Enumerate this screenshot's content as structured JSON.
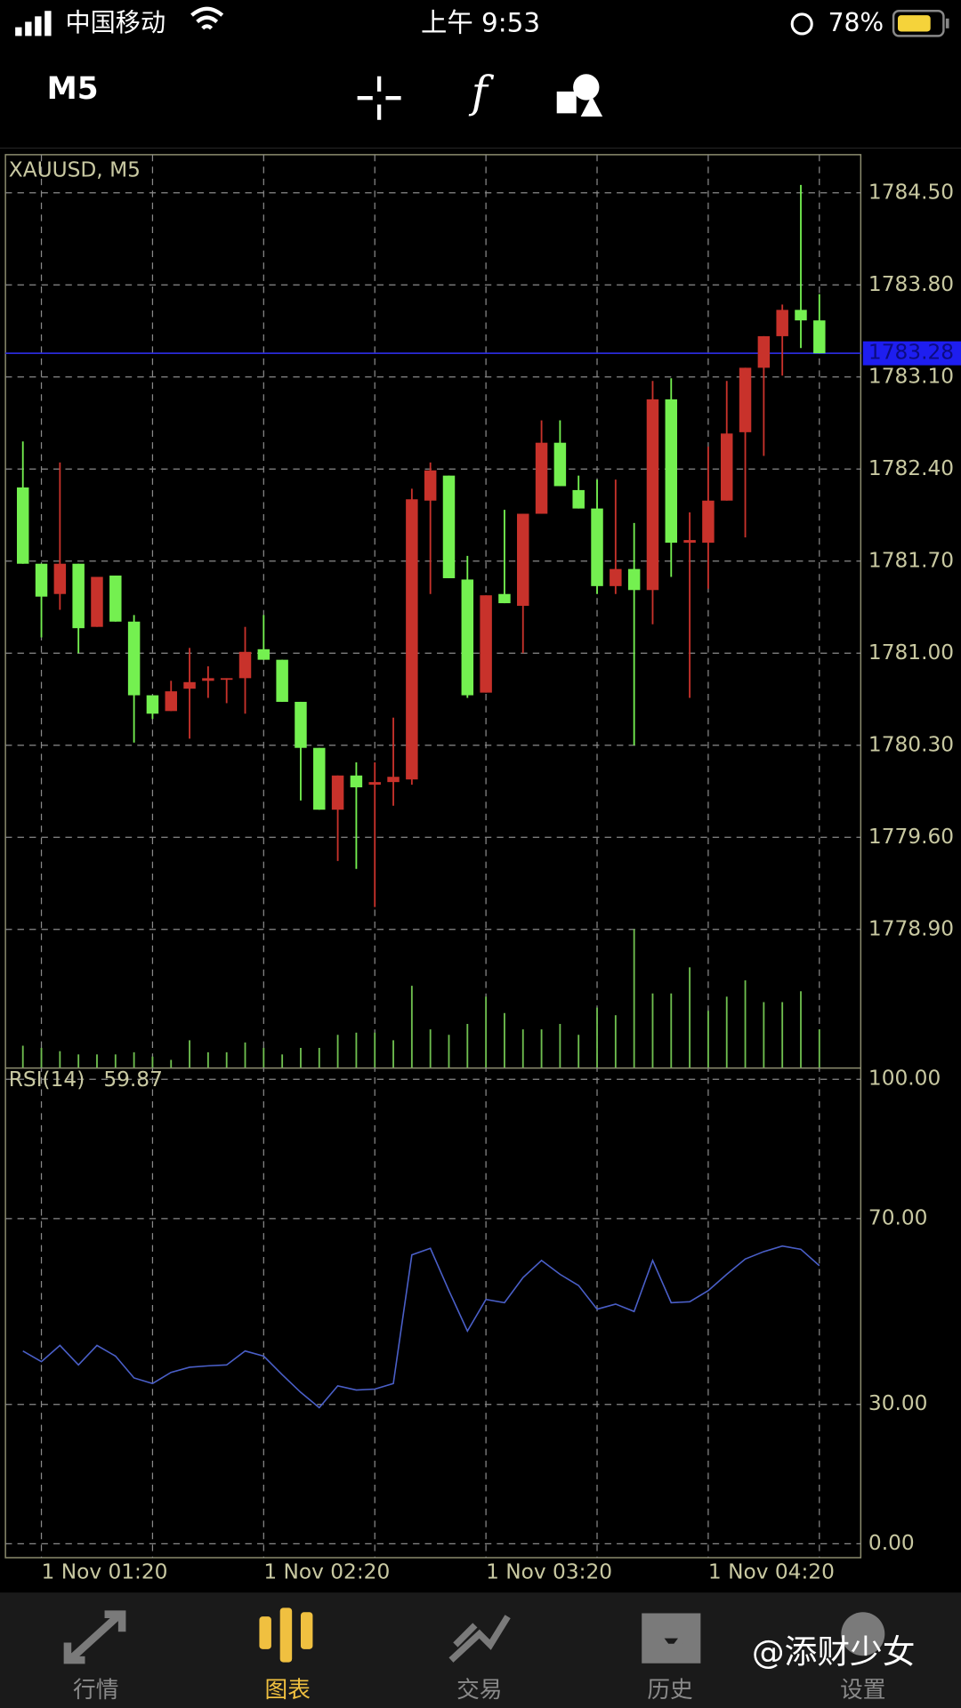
{
  "status_bar": {
    "carrier": "中国移动",
    "time": "上午 9:53",
    "battery": "78%"
  },
  "toolbar": {
    "timeframe": "M5"
  },
  "chart_data": {
    "type": "candlestick",
    "title": "XAUUSD, M5",
    "categories": [
      null,
      "1 Nov 01:20",
      null,
      null,
      null,
      null,
      null,
      null,
      null,
      null,
      null,
      null,
      null,
      "1 Nov 02:20",
      null,
      null,
      null,
      null,
      null,
      null,
      null,
      null,
      null,
      null,
      null,
      "1 Nov 03:20",
      null,
      null,
      null,
      null,
      null,
      null,
      null,
      null,
      null,
      null,
      null,
      "1 Nov 04:20",
      null,
      null,
      null,
      null,
      null,
      null
    ],
    "open": [
      1782.26,
      1781.68,
      1781.45,
      1781.68,
      1781.2,
      1781.59,
      1781.24,
      1780.68,
      1780.56,
      1780.73,
      1780.79,
      1780.8,
      1780.81,
      1781.03,
      1780.95,
      1780.63,
      1780.28,
      1779.81,
      1780.07,
      1780.0,
      1780.02,
      1780.04,
      1782.16,
      1782.35,
      1781.56,
      1780.7,
      1781.45,
      1781.36,
      1782.06,
      1782.6,
      1782.24,
      1782.1,
      1781.51,
      1781.64,
      1781.48,
      1782.93,
      1781.84,
      1781.84,
      1782.16,
      1782.68,
      1783.17,
      1783.41,
      1783.61,
      1783.53
    ],
    "high": [
      1782.61,
      1781.68,
      1782.45,
      1781.68,
      1781.58,
      1781.59,
      1781.29,
      1780.68,
      1780.79,
      1781.04,
      1780.9,
      1780.81,
      1781.2,
      1781.29,
      1780.95,
      1780.63,
      1780.28,
      1780.07,
      1780.17,
      1780.17,
      1780.51,
      1782.25,
      1782.45,
      1782.35,
      1781.74,
      1781.44,
      1782.09,
      1782.06,
      1782.77,
      1782.77,
      1782.35,
      1782.32,
      1782.32,
      1781.99,
      1783.07,
      1783.09,
      1782.07,
      1782.57,
      1783.07,
      1783.17,
      1783.41,
      1783.65,
      1784.56,
      1783.73
    ],
    "low": [
      1781.68,
      1781.12,
      1781.33,
      1781.0,
      1781.2,
      1781.24,
      1780.32,
      1780.5,
      1780.56,
      1780.35,
      1780.66,
      1780.62,
      1780.54,
      1780.95,
      1780.63,
      1779.88,
      1779.81,
      1779.42,
      1779.36,
      1779.07,
      1779.84,
      1780.0,
      1781.45,
      1781.57,
      1780.66,
      1780.7,
      1781.38,
      1781.0,
      1782.06,
      1782.27,
      1782.1,
      1781.45,
      1781.45,
      1780.3,
      1781.22,
      1781.58,
      1780.66,
      1781.49,
      1782.16,
      1781.88,
      1782.5,
      1783.11,
      1783.32,
      1783.28
    ],
    "close": [
      1781.68,
      1781.43,
      1781.68,
      1781.19,
      1781.58,
      1781.24,
      1780.68,
      1780.54,
      1780.71,
      1780.78,
      1780.81,
      1780.81,
      1781.01,
      1780.95,
      1780.63,
      1780.28,
      1779.81,
      1780.07,
      1779.98,
      1780.02,
      1780.06,
      1782.17,
      1782.39,
      1781.57,
      1780.68,
      1781.44,
      1781.38,
      1782.06,
      1782.6,
      1782.27,
      1782.1,
      1781.51,
      1781.64,
      1781.48,
      1782.93,
      1781.84,
      1781.86,
      1782.16,
      1782.67,
      1783.17,
      1783.41,
      1783.61,
      1783.53,
      1783.28
    ],
    "up_color": "#c8322b",
    "down_color": "#74f050",
    "ylim": [
      1777.85,
      1784.79
    ],
    "yticks": [
      {
        "value": 1784.5,
        "label": "1784.50"
      },
      {
        "value": 1783.8,
        "label": "1783.80"
      },
      {
        "value": 1783.1,
        "label": "1783.10"
      },
      {
        "value": 1782.4,
        "label": "1782.40"
      },
      {
        "value": 1781.7,
        "label": "1781.70"
      },
      {
        "value": 1781.0,
        "label": "1781.00"
      },
      {
        "value": 1780.3,
        "label": "1780.30"
      },
      {
        "value": 1779.6,
        "label": "1779.60"
      },
      {
        "value": 1778.9,
        "label": "1778.90"
      }
    ],
    "grid": true,
    "current_price": {
      "value": 1783.28,
      "label": "1783.28"
    },
    "volume": {
      "values": [
        20,
        18,
        15,
        12,
        12,
        12,
        14,
        10,
        7,
        25,
        14,
        14,
        23,
        18,
        12,
        18,
        18,
        30,
        32,
        32,
        25,
        75,
        35,
        30,
        40,
        65,
        50,
        35,
        35,
        40,
        30,
        55,
        48,
        127,
        68,
        68,
        92,
        52,
        65,
        80,
        60,
        60,
        70,
        35
      ],
      "color": "#6fbf4f"
    },
    "rsi": {
      "name": "RSI(14)",
      "color": "#4a5fc8",
      "values": [
        41.5,
        39.2,
        42.7,
        38.5,
        42.7,
        40.4,
        35.7,
        34.5,
        36.9,
        38.0,
        38.3,
        38.5,
        41.5,
        40.4,
        36.4,
        32.6,
        29.3,
        34.0,
        33.1,
        33.3,
        34.5,
        62.2,
        63.6,
        54.5,
        45.8,
        52.6,
        51.9,
        57.3,
        61.0,
        58.0,
        55.6,
        50.5,
        51.6,
        50.0,
        61.0,
        51.9,
        52.1,
        54.5,
        58.0,
        61.3,
        62.9,
        64.1,
        63.4,
        59.87
      ],
      "ylim": [
        -3,
        102.3
      ],
      "yticks": [
        {
          "value": 100,
          "label": "100.00"
        },
        {
          "value": 70,
          "label": "70.00"
        },
        {
          "value": 30,
          "label": "30.00"
        },
        {
          "value": 0,
          "label": "0.00"
        }
      ]
    }
  },
  "tab_bar": {
    "items": [
      "行情",
      "图表",
      "交易",
      "历史",
      "设置"
    ],
    "active": 1
  },
  "watermark": "@添财少女"
}
